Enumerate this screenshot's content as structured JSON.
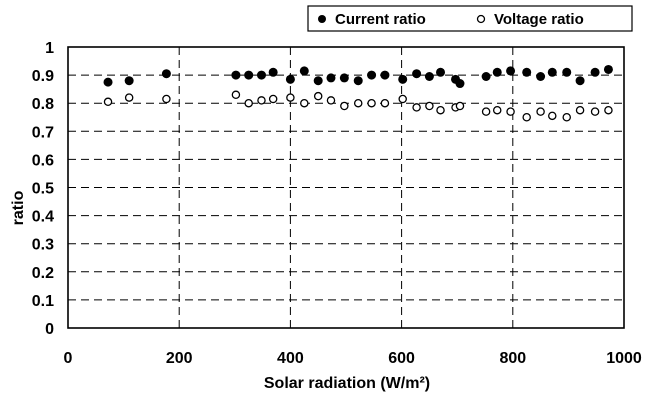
{
  "chart_data": {
    "type": "scatter",
    "xlabel": "Solar radiation  (W/m²)",
    "ylabel": "ratio",
    "xlim": [
      0,
      1000
    ],
    "ylim": [
      0,
      1
    ],
    "xticks": [
      "0",
      "200",
      "400",
      "600",
      "800",
      "1000"
    ],
    "yticks": [
      "0",
      "0.1",
      "0.2",
      "0.3",
      "0.4",
      "0.5",
      "0.6",
      "0.7",
      "0.8",
      "0.9",
      "1"
    ],
    "grid": "dashed",
    "legend_position": "top-right",
    "series": [
      {
        "name": "Current ratio",
        "marker": "filled-circle",
        "color": "#000000",
        "x": [
          72,
          110,
          177,
          302,
          325,
          348,
          369,
          400,
          425,
          450,
          473,
          497,
          522,
          546,
          570,
          602,
          627,
          650,
          670,
          697,
          705,
          752,
          772,
          796,
          825,
          850,
          871,
          897,
          921,
          948,
          972
        ],
        "y": [
          0.875,
          0.88,
          0.905,
          0.9,
          0.9,
          0.9,
          0.91,
          0.885,
          0.915,
          0.88,
          0.89,
          0.89,
          0.88,
          0.9,
          0.9,
          0.885,
          0.905,
          0.895,
          0.91,
          0.885,
          0.87,
          0.895,
          0.91,
          0.915,
          0.91,
          0.895,
          0.91,
          0.91,
          0.88,
          0.91,
          0.92
        ]
      },
      {
        "name": "Voltage ratio",
        "marker": "open-circle",
        "color": "#000000",
        "x": [
          72,
          110,
          177,
          302,
          325,
          348,
          369,
          400,
          425,
          450,
          473,
          497,
          522,
          546,
          570,
          602,
          627,
          650,
          670,
          697,
          705,
          752,
          772,
          796,
          825,
          850,
          871,
          897,
          921,
          948,
          972
        ],
        "y": [
          0.805,
          0.82,
          0.815,
          0.83,
          0.8,
          0.81,
          0.815,
          0.82,
          0.8,
          0.825,
          0.81,
          0.79,
          0.8,
          0.8,
          0.8,
          0.815,
          0.785,
          0.79,
          0.775,
          0.785,
          0.79,
          0.77,
          0.775,
          0.77,
          0.75,
          0.77,
          0.755,
          0.75,
          0.775,
          0.77,
          0.775
        ]
      }
    ]
  }
}
